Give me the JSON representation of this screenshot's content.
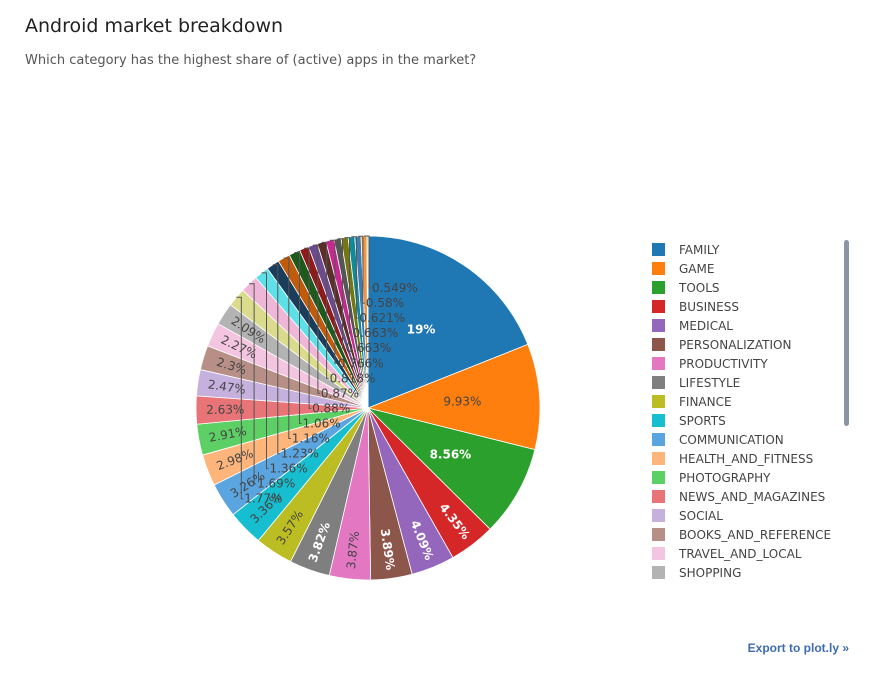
{
  "header": {
    "title": "Android market breakdown",
    "subtitle": "Which category has the highest share of (active) apps in the market?"
  },
  "export_label": "Export to plot.ly »",
  "chart_data": {
    "type": "pie",
    "title": "Android market breakdown",
    "subtitle": "Which category has the highest share of (active) apps in the market?",
    "legend_position": "right",
    "labels": [
      "FAMILY",
      "GAME",
      "TOOLS",
      "BUSINESS",
      "MEDICAL",
      "PERSONALIZATION",
      "PRODUCTIVITY",
      "LIFESTYLE",
      "FINANCE",
      "SPORTS",
      "COMMUNICATION",
      "HEALTH_AND_FITNESS",
      "PHOTOGRAPHY",
      "NEWS_AND_MAGAZINES",
      "SOCIAL",
      "BOOKS_AND_REFERENCE",
      "TRAVEL_AND_LOCAL",
      "SHOPPING",
      "",
      "",
      "",
      "",
      "",
      "",
      "",
      "",
      "",
      "",
      "",
      "",
      "",
      "",
      "",
      ""
    ],
    "legend_labels": [
      "FAMILY",
      "GAME",
      "TOOLS",
      "BUSINESS",
      "MEDICAL",
      "PERSONALIZATION",
      "PRODUCTIVITY",
      "LIFESTYLE",
      "FINANCE",
      "SPORTS",
      "COMMUNICATION",
      "HEALTH_AND_FITNESS",
      "PHOTOGRAPHY",
      "NEWS_AND_MAGAZINES",
      "SOCIAL",
      "BOOKS_AND_REFERENCE",
      "TRAVEL_AND_LOCAL",
      "SHOPPING"
    ],
    "values": [
      19,
      9.93,
      8.56,
      4.35,
      4.09,
      3.89,
      3.87,
      3.82,
      3.57,
      3.36,
      3.26,
      2.98,
      2.91,
      2.63,
      2.47,
      2.3,
      2.27,
      2.09,
      1.77,
      1.69,
      1.36,
      1.23,
      1.16,
      1.06,
      0.88,
      0.87,
      0.818,
      0.766,
      0.663,
      0.663,
      0.621,
      0.58,
      0.549,
      0.1
    ],
    "text_labels": [
      "19%",
      "9.93%",
      "8.56%",
      "4.35%",
      "4.09%",
      "3.89%",
      "3.87%",
      "3.82%",
      "3.57%",
      "3.36%",
      "3.26%",
      "2.98%",
      "2.91%",
      "2.63%",
      "2.47%",
      "2.3%",
      "2.27%",
      "2.09%",
      "1.77%",
      "1.69%",
      "1.36%",
      "1.23%",
      "1.16%",
      "1.06%",
      "0.88%",
      "0.87%",
      "0.818%",
      "0.766%",
      "0.663%",
      "0.663%",
      "0.621%",
      "0.58%",
      "0.549%",
      ""
    ],
    "colors": [
      "#1f77b4",
      "#ff7f0e",
      "#2ca02c",
      "#d62728",
      "#9467bd",
      "#8c564b",
      "#e377c2",
      "#7f7f7f",
      "#bcbd22",
      "#17becf",
      "#5aa5e0",
      "#fdb57b",
      "#5dd065",
      "#e87478",
      "#c6b0de",
      "#b88f86",
      "#f4c5e0",
      "#b3b3b3",
      "#dbdb8d",
      "#f0b6d8",
      "#5ee0e8",
      "#1a3d5c",
      "#c05b0c",
      "#1e5a1e",
      "#8e1b1b",
      "#6b4b8e",
      "#5a2e2a",
      "#c7288f",
      "#555555",
      "#747612",
      "#0f8a96",
      "#3e7bb0",
      "#f09540",
      "#3aa03a"
    ],
    "inside_label_colors": [
      "#ffffff",
      "#444444",
      "#ffffff",
      "#ffffff",
      "#ffffff",
      "#ffffff",
      "#444444",
      "#ffffff",
      "#444444",
      "#444444",
      "#444444",
      "#444444",
      "#444444",
      "#444444",
      "#444444",
      "#444444",
      "#444444",
      "#444444"
    ],
    "direction": "clockwise",
    "start_angle_deg": 90
  }
}
